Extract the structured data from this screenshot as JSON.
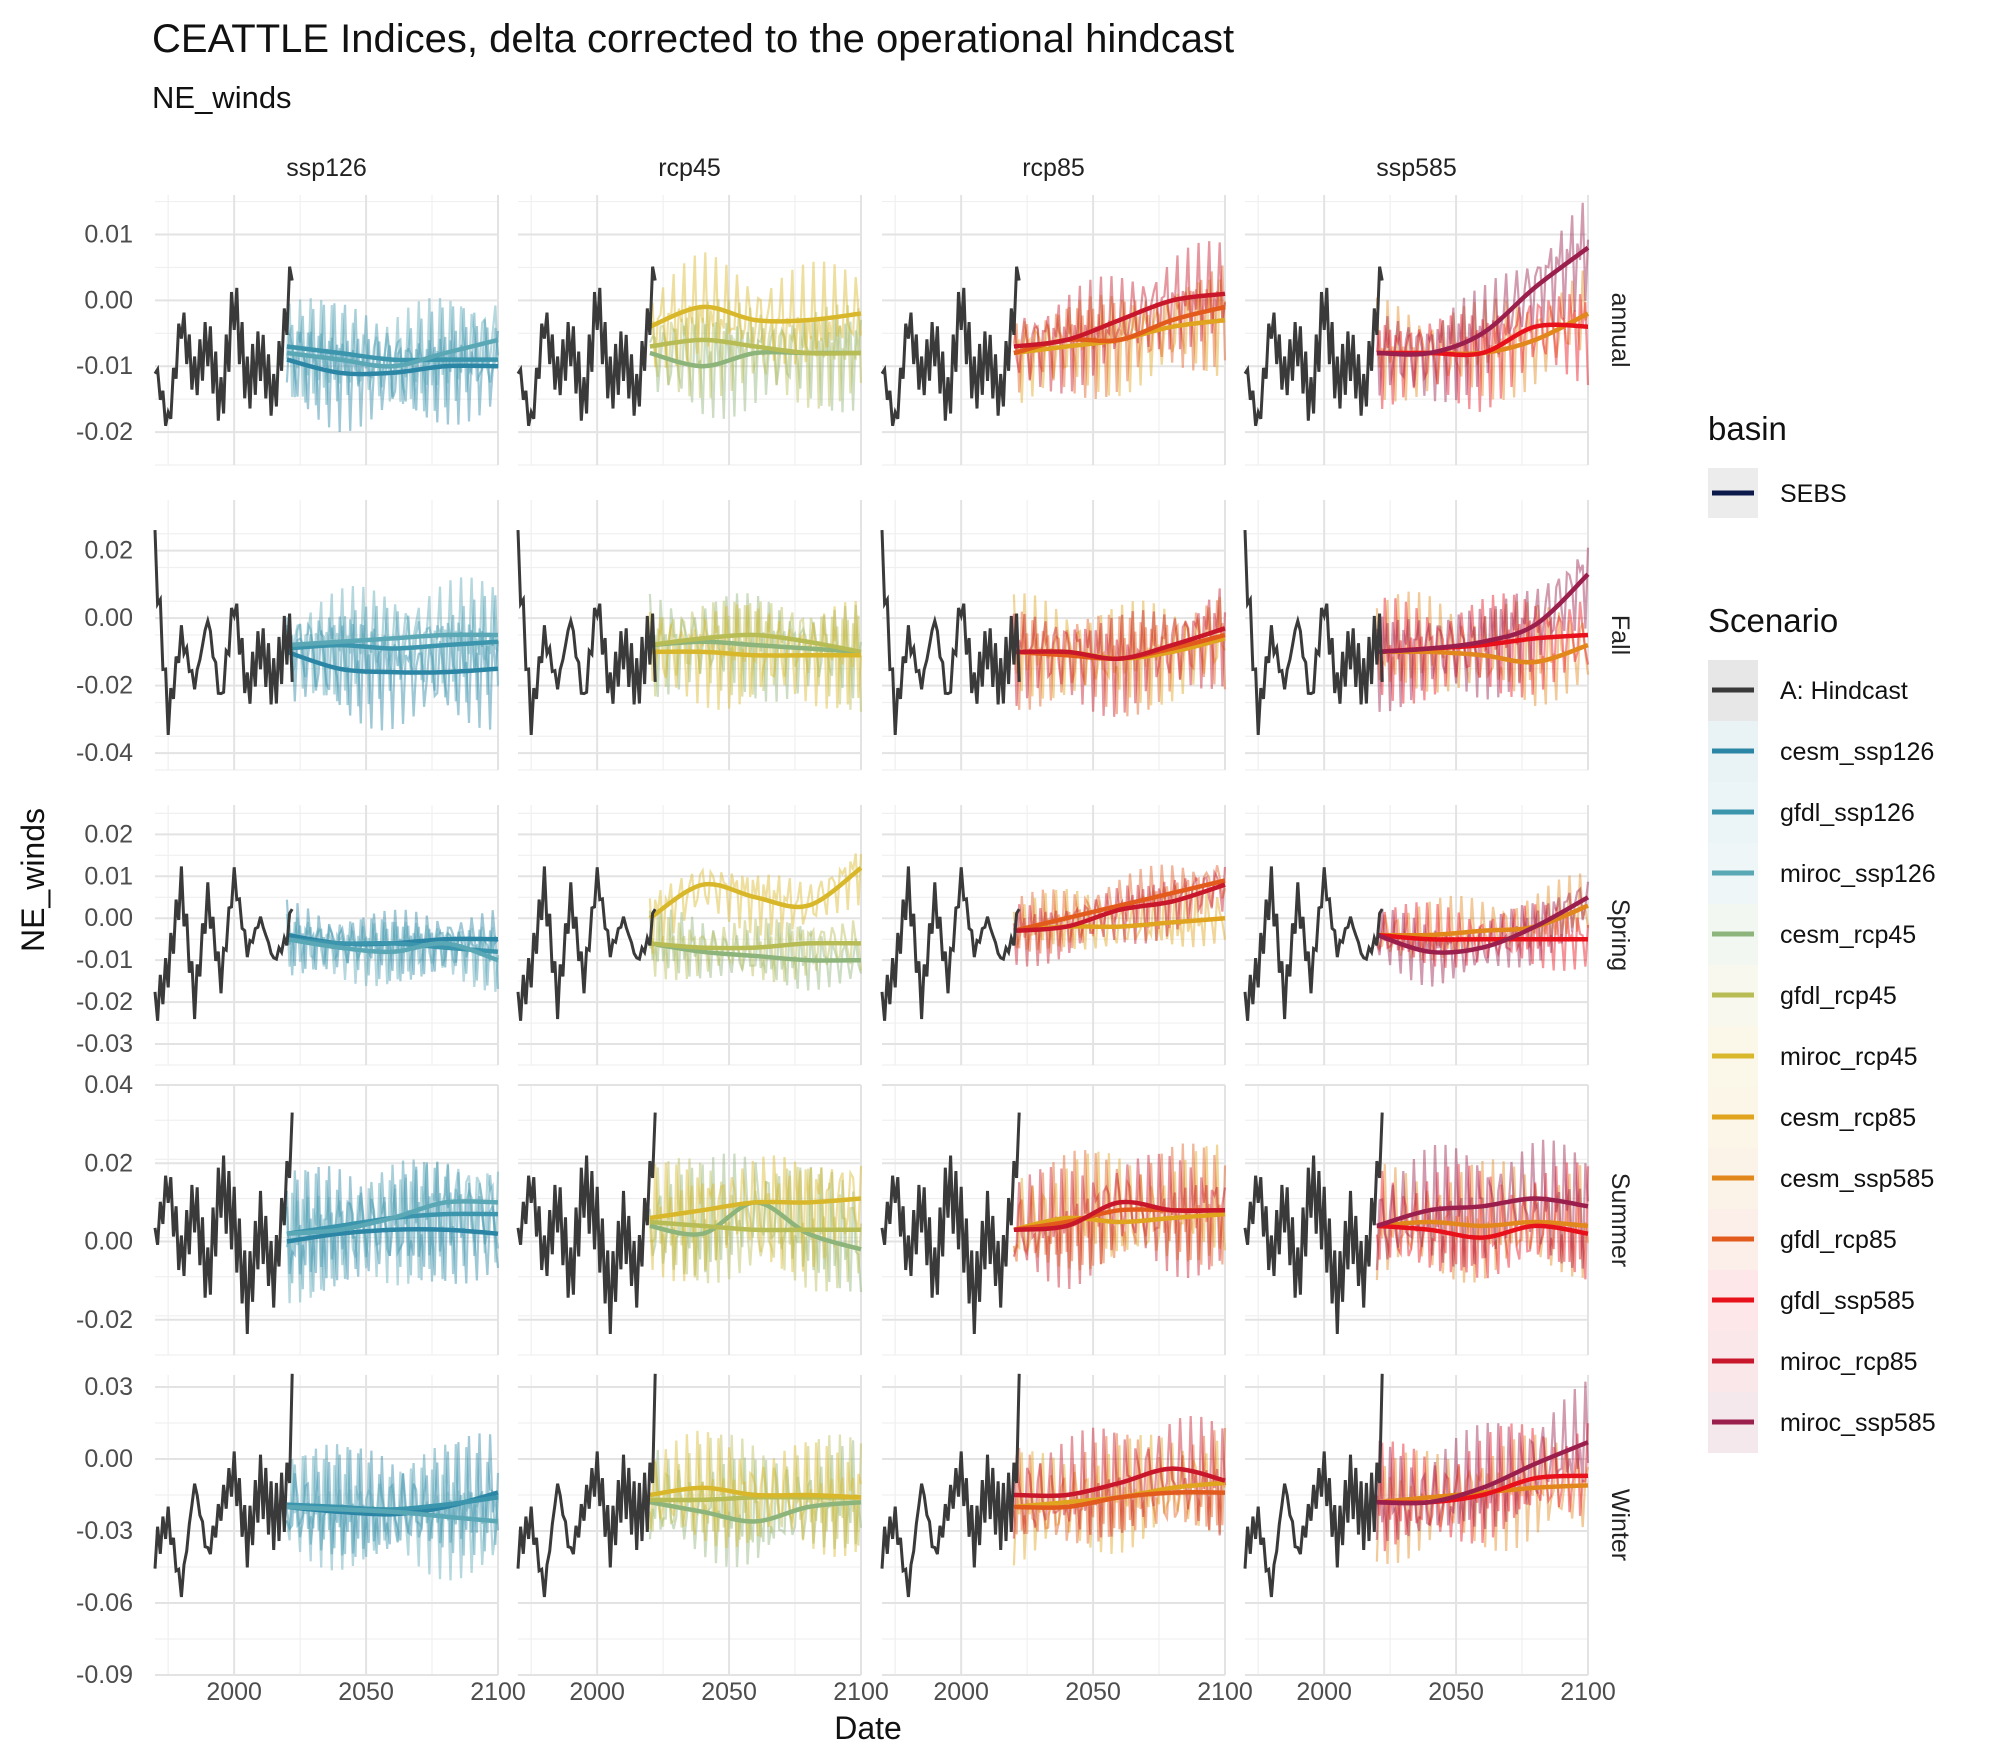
{
  "chart_data": {
    "type": "line",
    "title": "CEATTLE Indices, delta corrected to the operational hindcast",
    "subtitle": "NE_winds",
    "xlabel": "Date",
    "ylabel": "NE_winds",
    "xlim": [
      1970,
      2100
    ],
    "x_ticks": [
      2000,
      2050,
      2100
    ],
    "columns": [
      "ssp126",
      "rcp45",
      "rcp85",
      "ssp585"
    ],
    "rows": [
      {
        "name": "annual",
        "ylim": [
          -0.025,
          0.016
        ],
        "ticks": [
          0.01,
          0.0,
          -0.01,
          -0.02
        ],
        "tick_labels": [
          "0.01",
          "0.00",
          "-0.01",
          "-0.02"
        ]
      },
      {
        "name": "Fall",
        "ylim": [
          -0.045,
          0.035
        ],
        "ticks": [
          0.02,
          0.0,
          -0.02,
          -0.04
        ],
        "tick_labels": [
          "0.02",
          "0.00",
          "-0.02",
          "-0.04"
        ]
      },
      {
        "name": "Spring",
        "ylim": [
          -0.035,
          0.027
        ],
        "ticks": [
          0.02,
          0.01,
          0.0,
          -0.01,
          -0.02,
          -0.03
        ],
        "tick_labels": [
          "0.02",
          "0.01",
          "0.00",
          "-0.01",
          "-0.02",
          "-0.03"
        ]
      },
      {
        "name": "Summer",
        "ylim": [
          -0.029,
          0.04
        ],
        "ticks": [
          0.04,
          0.02,
          0.0,
          -0.02
        ],
        "tick_labels": [
          "0.04",
          "0.02",
          "0.00",
          "-0.02"
        ]
      },
      {
        "name": "Winter",
        "ylim": [
          -0.09,
          0.035
        ],
        "ticks": [
          0.03,
          0.0,
          -0.03,
          -0.06,
          -0.09
        ],
        "tick_labels": [
          "0.03",
          "0.00",
          "-0.03",
          "-0.06",
          "-0.09"
        ]
      }
    ],
    "legend": {
      "placement": "right",
      "basin_title": "basin",
      "basin_items": [
        {
          "name": "SEBS",
          "color": "#0b1a4a"
        }
      ],
      "scenario_title": "Scenario",
      "scenario_items": [
        {
          "name": "A: Hindcast",
          "color": "#3a3a3a"
        },
        {
          "name": "cesm_ssp126",
          "color": "#2b86a6"
        },
        {
          "name": "gfdl_ssp126",
          "color": "#3b95ad"
        },
        {
          "name": "miroc_ssp126",
          "color": "#5aa7b5"
        },
        {
          "name": "cesm_rcp45",
          "color": "#8db47a"
        },
        {
          "name": "gfdl_rcp45",
          "color": "#b8bc55"
        },
        {
          "name": "miroc_rcp45",
          "color": "#d9b72a"
        },
        {
          "name": "cesm_rcp85",
          "color": "#e0a41e"
        },
        {
          "name": "cesm_ssp585",
          "color": "#e2871b"
        },
        {
          "name": "gfdl_rcp85",
          "color": "#e25a1c"
        },
        {
          "name": "gfdl_ssp585",
          "color": "#e8101a"
        },
        {
          "name": "miroc_rcp85",
          "color": "#c8162a"
        },
        {
          "name": "miroc_ssp585",
          "color": "#9b1f4d"
        }
      ]
    },
    "column_scenarios": {
      "ssp126": [
        "cesm_ssp126",
        "gfdl_ssp126",
        "miroc_ssp126"
      ],
      "rcp45": [
        "cesm_rcp45",
        "gfdl_rcp45",
        "miroc_rcp45"
      ],
      "rcp85": [
        "cesm_rcp85",
        "gfdl_rcp85",
        "miroc_rcp85"
      ],
      "ssp585": [
        "cesm_ssp585",
        "gfdl_ssp585",
        "miroc_ssp585"
      ]
    },
    "hindcast": {
      "x": [
        1970,
        1975,
        1980,
        1985,
        1990,
        1995,
        2000,
        2005,
        2010,
        2015,
        2020,
        2022
      ],
      "series": {
        "annual": [
          -0.01,
          -0.019,
          -0.003,
          -0.012,
          -0.006,
          -0.016,
          0.0,
          -0.013,
          -0.008,
          -0.015,
          -0.002,
          0.006
        ],
        "Fall": [
          0.02,
          -0.03,
          -0.005,
          -0.02,
          0.0,
          -0.025,
          0.005,
          -0.022,
          -0.008,
          -0.02,
          -0.005,
          -0.01
        ],
        "Spring": [
          -0.022,
          -0.012,
          0.008,
          -0.02,
          0.005,
          -0.015,
          0.01,
          -0.008,
          0.0,
          -0.01,
          -0.005,
          0.004
        ],
        "Summer": [
          0.0,
          0.015,
          -0.005,
          0.01,
          -0.01,
          0.015,
          0.005,
          -0.015,
          0.005,
          -0.01,
          0.015,
          0.028
        ],
        "Winter": [
          -0.038,
          -0.025,
          -0.055,
          -0.01,
          -0.04,
          -0.02,
          -0.005,
          -0.035,
          -0.01,
          -0.025,
          -0.015,
          0.022
        ]
      }
    },
    "projection_x": [
      2020,
      2040,
      2060,
      2080,
      2100
    ],
    "smooth": {
      "annual": {
        "cesm_ssp126": [
          -0.009,
          -0.011,
          -0.011,
          -0.01,
          -0.01
        ],
        "gfdl_ssp126": [
          -0.007,
          -0.008,
          -0.009,
          -0.009,
          -0.009
        ],
        "miroc_ssp126": [
          -0.008,
          -0.009,
          -0.01,
          -0.008,
          -0.006
        ],
        "cesm_rcp45": [
          -0.008,
          -0.01,
          -0.008,
          -0.008,
          -0.008
        ],
        "gfdl_rcp45": [
          -0.007,
          -0.006,
          -0.007,
          -0.008,
          -0.008
        ],
        "miroc_rcp45": [
          -0.004,
          -0.001,
          -0.003,
          -0.003,
          -0.002
        ],
        "cesm_rcp85": [
          -0.008,
          -0.007,
          -0.006,
          -0.004,
          -0.003
        ],
        "gfdl_rcp85": [
          -0.008,
          -0.006,
          -0.006,
          -0.003,
          -0.001
        ],
        "miroc_rcp85": [
          -0.007,
          -0.006,
          -0.003,
          0.0,
          0.001
        ],
        "cesm_ssp585": [
          -0.008,
          -0.008,
          -0.008,
          -0.006,
          -0.002
        ],
        "gfdl_ssp585": [
          -0.008,
          -0.008,
          -0.008,
          -0.004,
          -0.004
        ],
        "miroc_ssp585": [
          -0.008,
          -0.008,
          -0.005,
          0.002,
          0.008
        ]
      },
      "Fall": {
        "cesm_ssp126": [
          -0.01,
          -0.015,
          -0.016,
          -0.016,
          -0.015
        ],
        "gfdl_ssp126": [
          -0.009,
          -0.008,
          -0.009,
          -0.008,
          -0.007
        ],
        "miroc_ssp126": [
          -0.008,
          -0.007,
          -0.006,
          -0.005,
          -0.005
        ],
        "cesm_rcp45": [
          -0.008,
          -0.007,
          -0.008,
          -0.009,
          -0.01
        ],
        "gfdl_rcp45": [
          -0.008,
          -0.006,
          -0.005,
          -0.007,
          -0.01
        ],
        "miroc_rcp45": [
          -0.01,
          -0.01,
          -0.011,
          -0.011,
          -0.011
        ],
        "cesm_rcp85": [
          -0.01,
          -0.01,
          -0.012,
          -0.01,
          -0.006
        ],
        "gfdl_rcp85": [
          -0.01,
          -0.011,
          -0.012,
          -0.009,
          -0.005
        ],
        "miroc_rcp85": [
          -0.01,
          -0.01,
          -0.012,
          -0.008,
          -0.003
        ],
        "cesm_ssp585": [
          -0.01,
          -0.01,
          -0.011,
          -0.013,
          -0.008
        ],
        "gfdl_ssp585": [
          -0.01,
          -0.009,
          -0.008,
          -0.006,
          -0.005
        ],
        "miroc_ssp585": [
          -0.01,
          -0.009,
          -0.007,
          -0.002,
          0.013
        ]
      },
      "Spring": {
        "cesm_ssp126": [
          -0.004,
          -0.006,
          -0.006,
          -0.005,
          -0.005
        ],
        "gfdl_ssp126": [
          -0.005,
          -0.006,
          -0.006,
          -0.007,
          -0.008
        ],
        "miroc_ssp126": [
          -0.005,
          -0.007,
          -0.008,
          -0.006,
          -0.01
        ],
        "cesm_rcp45": [
          -0.006,
          -0.008,
          -0.009,
          -0.01,
          -0.01
        ],
        "gfdl_rcp45": [
          -0.006,
          -0.007,
          -0.007,
          -0.006,
          -0.006
        ],
        "miroc_rcp45": [
          0.0,
          0.008,
          0.005,
          0.003,
          0.012
        ],
        "cesm_rcp85": [
          -0.003,
          -0.002,
          -0.002,
          -0.001,
          0.0
        ],
        "gfdl_rcp85": [
          -0.003,
          0.0,
          0.003,
          0.006,
          0.009
        ],
        "miroc_rcp85": [
          -0.003,
          -0.002,
          0.002,
          0.004,
          0.008
        ],
        "cesm_ssp585": [
          -0.004,
          -0.004,
          -0.003,
          -0.002,
          0.003
        ],
        "gfdl_ssp585": [
          -0.004,
          -0.005,
          -0.005,
          -0.005,
          -0.005
        ],
        "miroc_ssp585": [
          -0.004,
          -0.008,
          -0.007,
          -0.002,
          0.005
        ]
      },
      "Summer": {
        "cesm_ssp126": [
          0.0,
          0.002,
          0.003,
          0.003,
          0.002
        ],
        "gfdl_ssp126": [
          0.002,
          0.004,
          0.006,
          0.007,
          0.007
        ],
        "miroc_ssp126": [
          0.002,
          0.003,
          0.006,
          0.01,
          0.01
        ],
        "cesm_rcp45": [
          0.004,
          0.002,
          0.01,
          0.002,
          -0.002
        ],
        "gfdl_rcp45": [
          0.005,
          0.004,
          0.003,
          0.003,
          0.003
        ],
        "miroc_rcp45": [
          0.006,
          0.008,
          0.01,
          0.01,
          0.011
        ],
        "cesm_rcp85": [
          0.003,
          0.006,
          0.005,
          0.006,
          0.007
        ],
        "gfdl_rcp85": [
          0.003,
          0.005,
          0.008,
          0.008,
          0.008
        ],
        "miroc_rcp85": [
          0.003,
          0.004,
          0.01,
          0.008,
          0.008
        ],
        "cesm_ssp585": [
          0.004,
          0.005,
          0.004,
          0.005,
          0.004
        ],
        "gfdl_ssp585": [
          0.004,
          0.003,
          0.001,
          0.004,
          0.002
        ],
        "miroc_ssp585": [
          0.004,
          0.008,
          0.009,
          0.011,
          0.009
        ]
      },
      "Winter": {
        "cesm_ssp126": [
          -0.02,
          -0.022,
          -0.023,
          -0.02,
          -0.014
        ],
        "gfdl_ssp126": [
          -0.019,
          -0.02,
          -0.021,
          -0.019,
          -0.016
        ],
        "miroc_ssp126": [
          -0.02,
          -0.021,
          -0.022,
          -0.024,
          -0.026
        ],
        "cesm_rcp45": [
          -0.018,
          -0.022,
          -0.026,
          -0.02,
          -0.018
        ],
        "gfdl_rcp45": [
          -0.017,
          -0.017,
          -0.016,
          -0.016,
          -0.016
        ],
        "miroc_rcp45": [
          -0.015,
          -0.012,
          -0.015,
          -0.015,
          -0.016
        ],
        "cesm_rcp85": [
          -0.02,
          -0.018,
          -0.016,
          -0.012,
          -0.01
        ],
        "gfdl_rcp85": [
          -0.02,
          -0.02,
          -0.016,
          -0.014,
          -0.014
        ],
        "miroc_rcp85": [
          -0.015,
          -0.015,
          -0.01,
          -0.004,
          -0.009
        ],
        "cesm_ssp585": [
          -0.018,
          -0.016,
          -0.014,
          -0.012,
          -0.011
        ],
        "gfdl_ssp585": [
          -0.018,
          -0.018,
          -0.015,
          -0.008,
          -0.007
        ],
        "miroc_ssp585": [
          -0.018,
          -0.018,
          -0.012,
          -0.002,
          0.007
        ]
      }
    }
  }
}
